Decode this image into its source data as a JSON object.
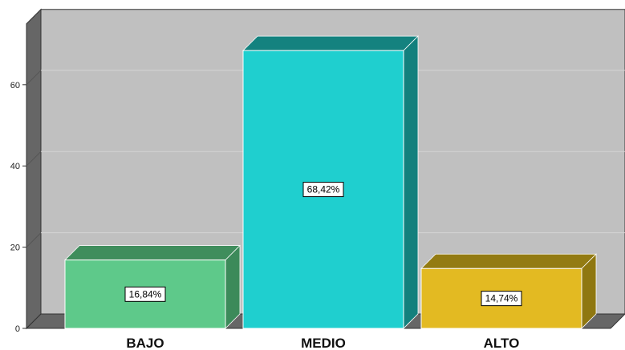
{
  "chart_data": {
    "type": "bar",
    "style": "3d",
    "categories": [
      "BAJO",
      "MEDIO",
      "ALTO"
    ],
    "values": [
      16.84,
      68.42,
      14.74
    ],
    "data_labels": [
      "16,84%",
      "68,42%",
      "14,74%"
    ],
    "colors": [
      "#5ec98a",
      "#1fcfcf",
      "#e3ba22"
    ],
    "side_colors": [
      "#3c8a5a",
      "#13807d",
      "#8f7710"
    ],
    "top_colors": [
      "#3f8d5c",
      "#14827f",
      "#937b12"
    ],
    "ylim": [
      0,
      75
    ],
    "yticks": [
      0,
      20,
      40,
      60
    ],
    "ytick_labels": [
      "0",
      "20",
      "40",
      "60"
    ],
    "grid": true,
    "legend": "none",
    "title": "",
    "xlabel": "",
    "ylabel": ""
  }
}
